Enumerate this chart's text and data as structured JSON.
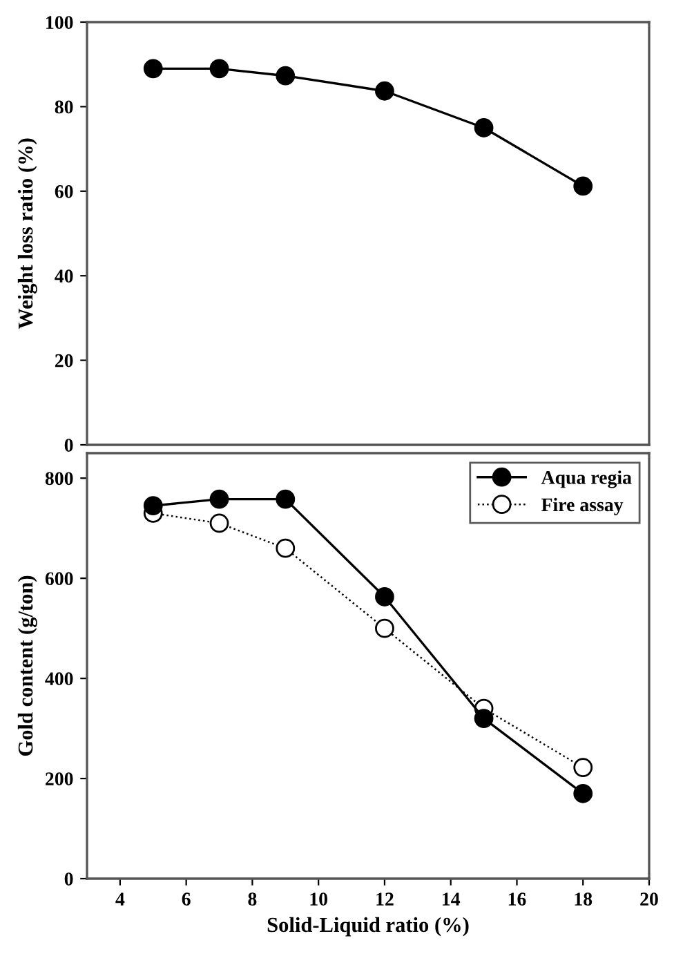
{
  "chart_data": [
    {
      "type": "line",
      "ylabel": "Weight loss ratio (%)",
      "x": [
        5,
        7,
        9,
        12,
        15,
        18
      ],
      "xlim": [
        3,
        20
      ],
      "ylim": [
        0,
        100
      ],
      "yticks": [
        0,
        20,
        40,
        60,
        80,
        100
      ],
      "tick_labels": "y",
      "grid": false,
      "legend": false,
      "marker": "circle",
      "line_style": "solid",
      "series": [
        {
          "color": "#000000",
          "values": [
            89,
            89,
            87.3,
            83.7,
            75,
            61.2
          ]
        }
      ]
    },
    {
      "type": "line",
      "xlabel": "Solid-Liquid ratio (%)",
      "ylabel": "Gold content (g/ton)",
      "x": [
        5,
        7,
        9,
        12,
        15,
        18
      ],
      "xlim": [
        3,
        20
      ],
      "xticks": [
        4,
        6,
        8,
        10,
        12,
        14,
        16,
        18,
        20
      ],
      "ylim": [
        0,
        850
      ],
      "yticks": [
        0,
        200,
        400,
        600,
        800
      ],
      "grid": false,
      "legend": "top right",
      "marker": "circle",
      "series": [
        {
          "name": "Aqua regia",
          "color": "#000000",
          "line_style": "solid",
          "values": [
            745,
            758,
            758,
            563,
            320,
            170
          ]
        },
        {
          "name": "Fire assay",
          "color": "#000000",
          "line_style": "dotted",
          "values": [
            730,
            710,
            660,
            500,
            340,
            222
          ]
        }
      ]
    }
  ]
}
